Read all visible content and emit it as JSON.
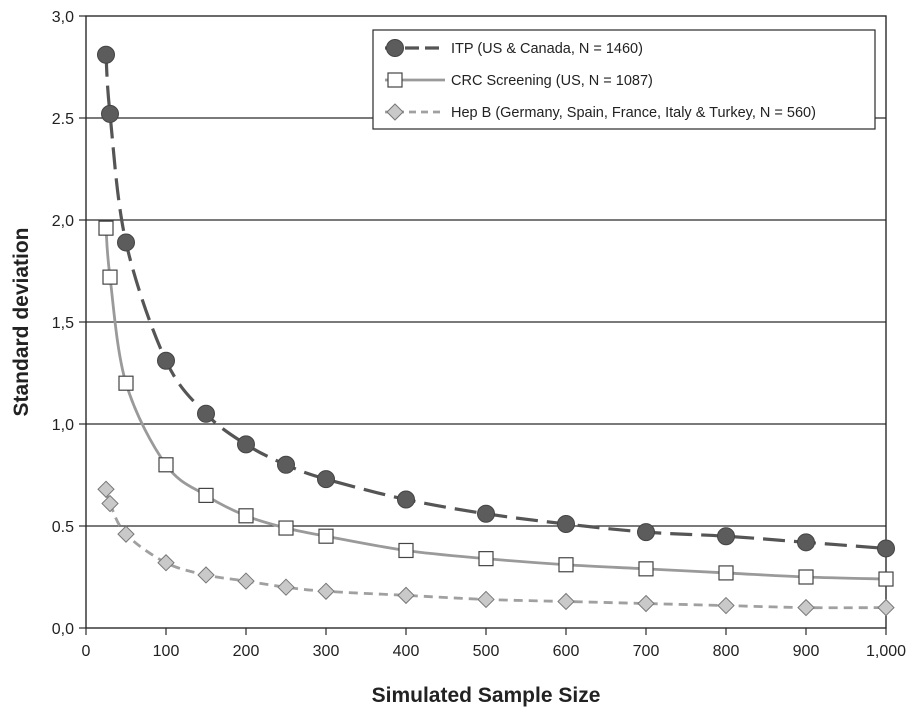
{
  "chart_data": {
    "type": "line",
    "title": "",
    "xlabel": "Simulated Sample Size",
    "ylabel": "Standard deviation",
    "xlim": [
      0,
      1000
    ],
    "ylim": [
      0,
      3.0
    ],
    "x_ticks": [
      0,
      100,
      200,
      300,
      400,
      500,
      600,
      700,
      800,
      900,
      1000
    ],
    "x_tick_labels": [
      "0",
      "100",
      "200",
      "300",
      "400",
      "500",
      "600",
      "700",
      "800",
      "900",
      "1,000"
    ],
    "y_ticks": [
      0,
      0.5,
      1.0,
      1.5,
      2.0,
      2.5,
      3.0
    ],
    "y_tick_labels": [
      "0,0",
      "0.5",
      "1,0",
      "1,5",
      "2,0",
      "2.5",
      "3,0"
    ],
    "grid": "horizontal",
    "legend_position": "top-right",
    "x": [
      25,
      30,
      50,
      100,
      150,
      200,
      250,
      300,
      400,
      500,
      600,
      700,
      800,
      900,
      1000
    ],
    "series": [
      {
        "name": "ITP (US & Canada, N = 1460)",
        "marker": "circle",
        "line_style": "long-dash",
        "color": "#555555",
        "values": [
          2.81,
          2.52,
          1.89,
          1.31,
          1.05,
          0.9,
          0.8,
          0.73,
          0.63,
          0.56,
          0.51,
          0.47,
          0.45,
          0.42,
          0.39
        ]
      },
      {
        "name": "CRC Screening (US, N = 1087)",
        "marker": "square",
        "line_style": "solid",
        "color": "#9a9a9a",
        "values": [
          1.96,
          1.72,
          1.2,
          0.8,
          0.65,
          0.55,
          0.49,
          0.45,
          0.38,
          0.34,
          0.31,
          0.29,
          0.27,
          0.25,
          0.24
        ]
      },
      {
        "name": "Hep B (Germany, Spain, France, Italy & Turkey, N = 560)",
        "marker": "diamond",
        "line_style": "short-dash",
        "color": "#a0a0a0",
        "values": [
          0.68,
          0.61,
          0.46,
          0.32,
          0.26,
          0.23,
          0.2,
          0.18,
          0.16,
          0.14,
          0.13,
          0.12,
          0.11,
          0.1,
          0.1
        ]
      }
    ]
  }
}
